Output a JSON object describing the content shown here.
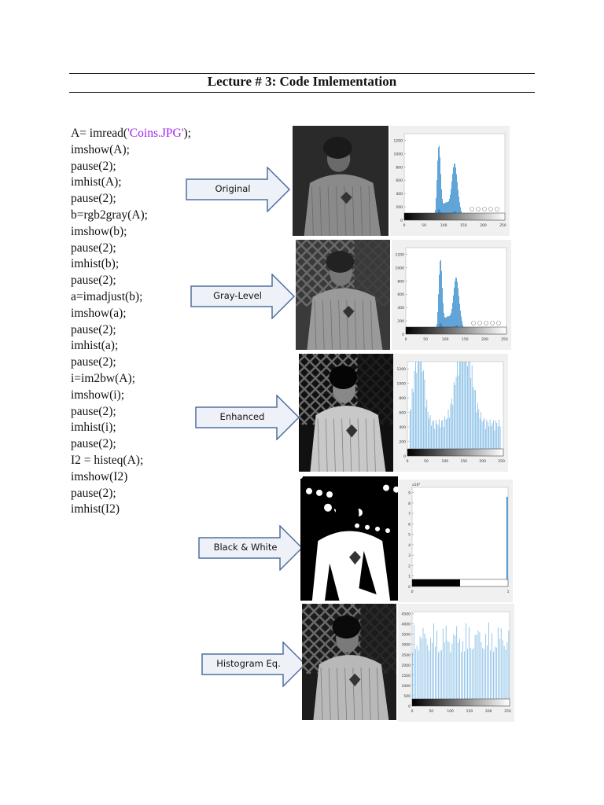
{
  "page": {
    "title": "Lecture # 3: Code Imlementation"
  },
  "code": {
    "first_prefix": "A= imread(",
    "first_string": "'Coins.JPG'",
    "first_suffix": ");",
    "lines": [
      "imshow(A);",
      "pause(2);",
      "imhist(A);",
      "pause(2);",
      "b=rgb2gray(A);",
      "imshow(b);",
      "pause(2);",
      "imhist(b);",
      "pause(2);",
      "a=imadjust(b);",
      "imshow(a);",
      "pause(2);",
      "imhist(a);",
      "pause(2);",
      "i=im2bw(A);",
      "imshow(i);",
      "pause(2);",
      "imhist(i);",
      "pause(2);",
      "I2 = histeq(A);",
      "imshow(I2)",
      "pause(2);",
      "imhist(I2)"
    ]
  },
  "steps": [
    {
      "label": "Original"
    },
    {
      "label": "Gray-Level"
    },
    {
      "label": "Enhanced"
    },
    {
      "label": "Black & White"
    },
    {
      "label": "Histogram Eq."
    }
  ],
  "colors": {
    "bar": "#1f7fc8",
    "bar_light": "#6aaee0",
    "code_string": "#a020f0"
  },
  "chart_data": [
    {
      "type": "bar",
      "name": "original",
      "yticks": [
        "1200",
        "1000",
        "800",
        "600",
        "400",
        "200",
        "0"
      ],
      "xticks": [
        "0",
        "50",
        "100",
        "150",
        "200",
        "250"
      ],
      "xlim": [
        0,
        255
      ],
      "ylim": [
        0,
        1300
      ]
    },
    {
      "type": "bar",
      "name": "gray-level",
      "yticks": [
        "1200",
        "1000",
        "800",
        "600",
        "400",
        "200",
        "0"
      ],
      "xticks": [
        "0",
        "50",
        "100",
        "150",
        "200",
        "250"
      ],
      "xlim": [
        0,
        255
      ],
      "ylim": [
        0,
        1300
      ]
    },
    {
      "type": "bar",
      "name": "enhanced",
      "yticks": [
        "1200",
        "1000",
        "800",
        "600",
        "400",
        "200",
        "0"
      ],
      "xticks": [
        "0",
        "50",
        "100",
        "150",
        "200",
        "250"
      ],
      "xlim": [
        0,
        255
      ],
      "ylim": [
        0,
        1300
      ]
    },
    {
      "type": "bar",
      "name": "black-white",
      "exponent": "x10⁴",
      "yticks": [
        "9",
        "8",
        "7",
        "6",
        "5",
        "4",
        "3",
        "2",
        "1",
        "0"
      ],
      "xticks": [
        "0",
        "1"
      ],
      "xlim": [
        0,
        1
      ],
      "ylim": [
        0,
        9.5
      ]
    },
    {
      "type": "bar",
      "name": "histeq",
      "yticks": [
        "4500",
        "4000",
        "3500",
        "3000",
        "2500",
        "2000",
        "1500",
        "1000",
        "500",
        "0"
      ],
      "xticks": [
        "0",
        "50",
        "100",
        "150",
        "200",
        "250"
      ],
      "xlim": [
        0,
        255
      ],
      "ylim": [
        0,
        4600
      ]
    }
  ]
}
